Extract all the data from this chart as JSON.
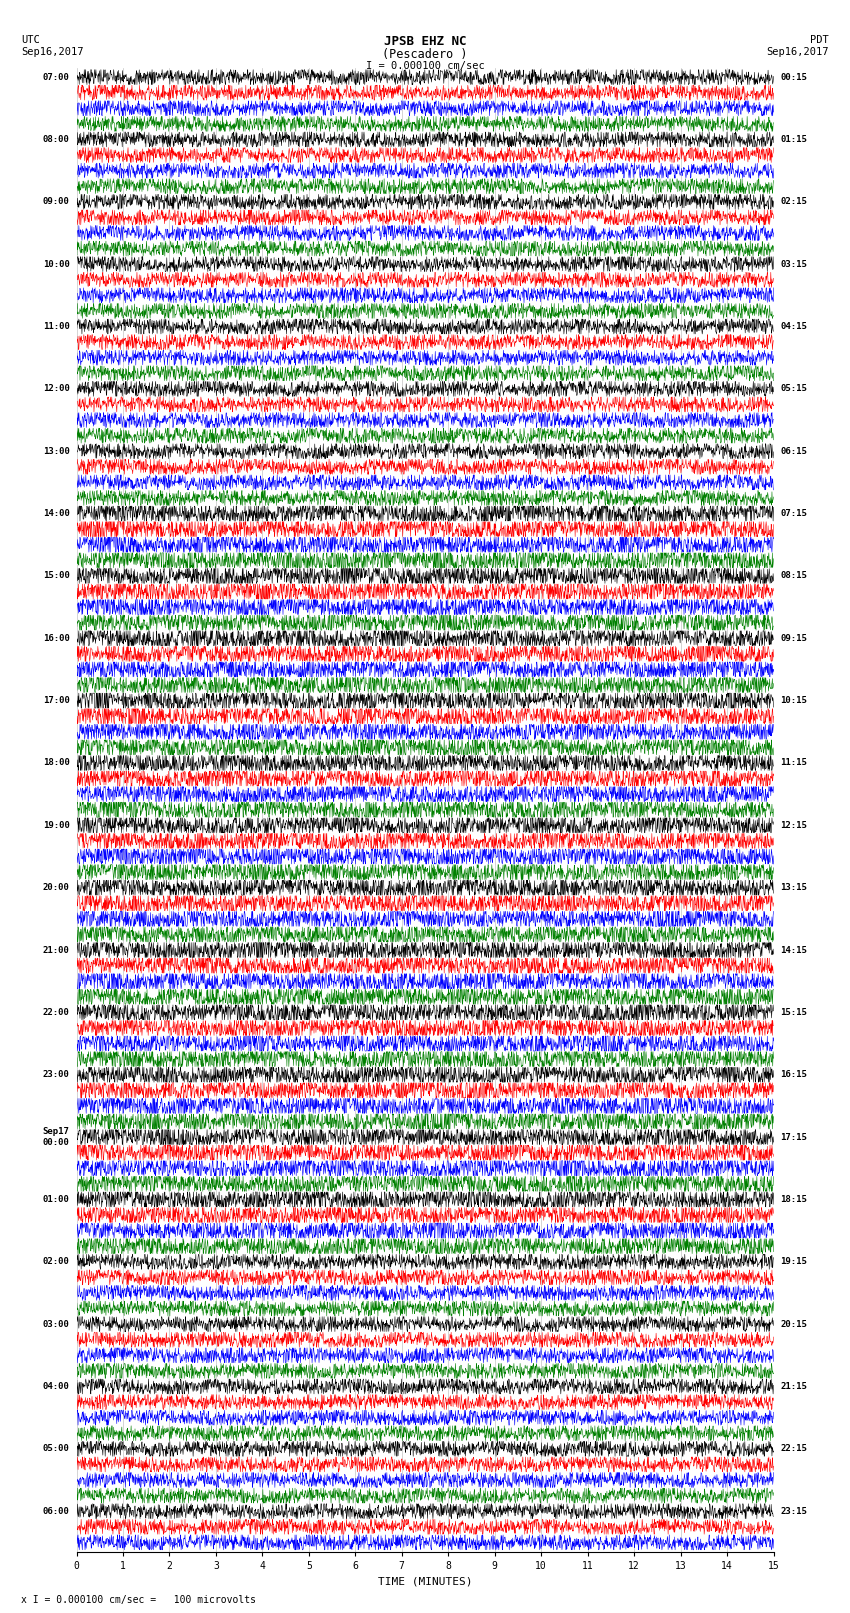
{
  "title_line1": "JPSB EHZ NC",
  "title_line2": "(Pescadero )",
  "scale_label": "I = 0.000100 cm/sec",
  "utc_label": "UTC",
  "utc_date": "Sep16,2017",
  "pdt_label": "PDT",
  "pdt_date": "Sep16,2017",
  "xlabel": "TIME (MINUTES)",
  "footer": "x I = 0.000100 cm/sec =   100 microvolts",
  "left_times": [
    "07:00",
    "",
    "",
    "",
    "08:00",
    "",
    "",
    "",
    "09:00",
    "",
    "",
    "",
    "10:00",
    "",
    "",
    "",
    "11:00",
    "",
    "",
    "",
    "12:00",
    "",
    "",
    "",
    "13:00",
    "",
    "",
    "",
    "14:00",
    "",
    "",
    "",
    "15:00",
    "",
    "",
    "",
    "16:00",
    "",
    "",
    "",
    "17:00",
    "",
    "",
    "",
    "18:00",
    "",
    "",
    "",
    "19:00",
    "",
    "",
    "",
    "20:00",
    "",
    "",
    "",
    "21:00",
    "",
    "",
    "",
    "22:00",
    "",
    "",
    "",
    "23:00",
    "",
    "",
    "",
    "Sep17\n00:00",
    "",
    "",
    "",
    "01:00",
    "",
    "",
    "",
    "02:00",
    "",
    "",
    "",
    "03:00",
    "",
    "",
    "",
    "04:00",
    "",
    "",
    "",
    "05:00",
    "",
    "",
    "",
    "06:00",
    "",
    ""
  ],
  "right_times": [
    "00:15",
    "",
    "",
    "",
    "01:15",
    "",
    "",
    "",
    "02:15",
    "",
    "",
    "",
    "03:15",
    "",
    "",
    "",
    "04:15",
    "",
    "",
    "",
    "05:15",
    "",
    "",
    "",
    "06:15",
    "",
    "",
    "",
    "07:15",
    "",
    "",
    "",
    "08:15",
    "",
    "",
    "",
    "09:15",
    "",
    "",
    "",
    "10:15",
    "",
    "",
    "",
    "11:15",
    "",
    "",
    "",
    "12:15",
    "",
    "",
    "",
    "13:15",
    "",
    "",
    "",
    "14:15",
    "",
    "",
    "",
    "15:15",
    "",
    "",
    "",
    "16:15",
    "",
    "",
    "",
    "17:15",
    "",
    "",
    "",
    "18:15",
    "",
    "",
    "",
    "19:15",
    "",
    "",
    "",
    "20:15",
    "",
    "",
    "",
    "21:15",
    "",
    "",
    "",
    "22:15",
    "",
    "",
    "",
    "23:15",
    "",
    ""
  ],
  "colors": [
    "black",
    "red",
    "blue",
    "green"
  ],
  "n_traces": 95,
  "n_points": 1800,
  "x_min": 0,
  "x_max": 15,
  "bg_color": "white",
  "grid_color": "#aaaaaa",
  "seed": 12345
}
